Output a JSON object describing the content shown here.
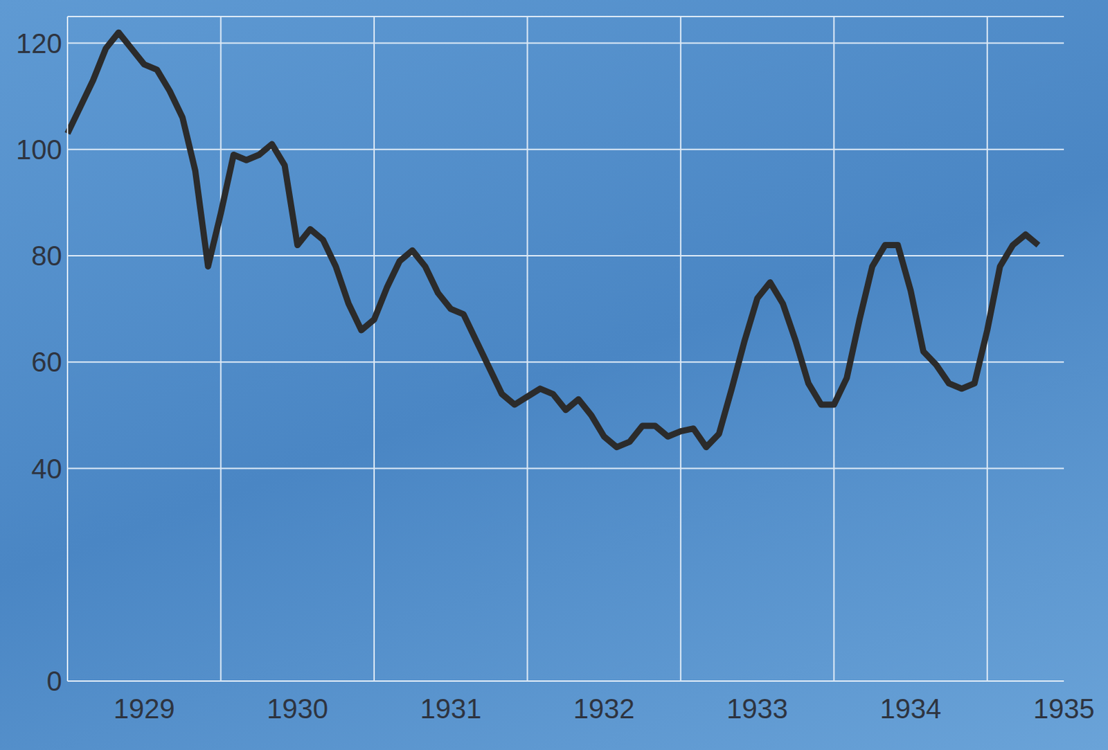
{
  "chart_data": {
    "type": "line",
    "categories": [
      null,
      null,
      null,
      null,
      null,
      null,
      "1929",
      null,
      null,
      null,
      null,
      null,
      null,
      null,
      null,
      null,
      null,
      null,
      "1930",
      null,
      null,
      null,
      null,
      null,
      null,
      null,
      null,
      null,
      null,
      null,
      "1931",
      null,
      null,
      null,
      null,
      null,
      null,
      null,
      null,
      null,
      null,
      null,
      "1932",
      null,
      null,
      null,
      null,
      null,
      null,
      null,
      null,
      null,
      null,
      null,
      "1933",
      null,
      null,
      null,
      null,
      null,
      null,
      null,
      null,
      null,
      null,
      null,
      "1934",
      null,
      null,
      null,
      null,
      null,
      null,
      null,
      null,
      null,
      null,
      null,
      "1935"
    ],
    "values": [
      103,
      108,
      113,
      119,
      122,
      119,
      116,
      115,
      111,
      106,
      96,
      78,
      88,
      99,
      98,
      99,
      101,
      97,
      82,
      85,
      83,
      78,
      71,
      66,
      68,
      74,
      79,
      81,
      78,
      73,
      70,
      69,
      64,
      59,
      54,
      52,
      53.5,
      55,
      54,
      51,
      53,
      50,
      46,
      44,
      45,
      48,
      48,
      46,
      47,
      47.5,
      44,
      46.5,
      55,
      64,
      72,
      75,
      71,
      64,
      56,
      52,
      52,
      57,
      68,
      78,
      82,
      82,
      73.5,
      62,
      59.5,
      56,
      55,
      56,
      66,
      78,
      82,
      84,
      82,
      null,
      null
    ],
    "color": "#2b2b2b",
    "ylim": [
      0,
      125
    ],
    "yticks": [
      0,
      40,
      60,
      80,
      100,
      120
    ],
    "grid": true
  }
}
